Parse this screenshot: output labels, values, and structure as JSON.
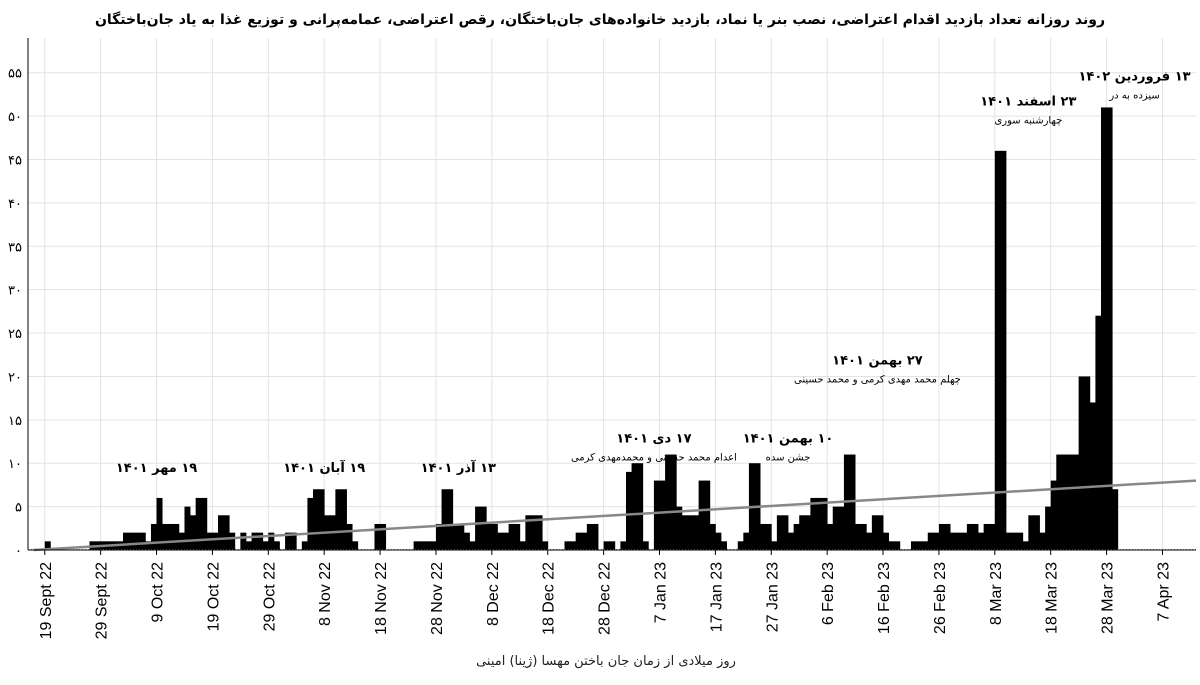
{
  "chart_data": {
    "type": "bar",
    "title": "روند روزانه تعداد بازدید اقدام اعتراضی، نصب بنر یا نماد، بازدید خانواده‌های جان‌باختگان، رقص اعتراضی، عمامه‌پرانی و توزیع غذا به یاد جان‌باختگان",
    "xlabel": "روز میلادی از زمان جان باختن مهسا (ژینا) امینی",
    "ylabel": "",
    "x_range": [
      "2022-09-16",
      "2023-04-13"
    ],
    "ylim": [
      0,
      59
    ],
    "grid": true,
    "y_ticks": [
      {
        "value": 0,
        "label": "۰"
      },
      {
        "value": 5,
        "label": "۵"
      },
      {
        "value": 10,
        "label": "۱۰"
      },
      {
        "value": 15,
        "label": "۱۵"
      },
      {
        "value": 20,
        "label": "۲۰"
      },
      {
        "value": 25,
        "label": "۲۵"
      },
      {
        "value": 30,
        "label": "۳۰"
      },
      {
        "value": 35,
        "label": "۳۵"
      },
      {
        "value": 40,
        "label": "۴۰"
      },
      {
        "value": 45,
        "label": "۴۵"
      },
      {
        "value": 50,
        "label": "۵۰"
      },
      {
        "value": 55,
        "label": "۵۵"
      }
    ],
    "x_ticks": [
      {
        "date": "2022-09-19",
        "label": "19 Sept 22"
      },
      {
        "date": "2022-09-29",
        "label": "29 Sept 22"
      },
      {
        "date": "2022-10-09",
        "label": "9 Oct 22"
      },
      {
        "date": "2022-10-19",
        "label": "19 Oct 22"
      },
      {
        "date": "2022-10-29",
        "label": "29 Oct 22"
      },
      {
        "date": "2022-11-08",
        "label": "8 Nov 22"
      },
      {
        "date": "2022-11-18",
        "label": "18 Nov 22"
      },
      {
        "date": "2022-11-28",
        "label": "28 Nov 22"
      },
      {
        "date": "2022-12-08",
        "label": "8 Dec 22"
      },
      {
        "date": "2022-12-18",
        "label": "18 Dec 22"
      },
      {
        "date": "2022-12-28",
        "label": "28 Dec 22"
      },
      {
        "date": "2023-01-07",
        "label": "7 Jan 23"
      },
      {
        "date": "2023-01-17",
        "label": "17 Jan 23"
      },
      {
        "date": "2023-01-27",
        "label": "27 Jan 23"
      },
      {
        "date": "2023-02-06",
        "label": "6 Feb 23"
      },
      {
        "date": "2023-02-16",
        "label": "16 Feb 23"
      },
      {
        "date": "2023-02-26",
        "label": "26 Feb 23"
      },
      {
        "date": "2023-03-08",
        "label": "8 Mar 23"
      },
      {
        "date": "2023-03-18",
        "label": "18 Mar 23"
      },
      {
        "date": "2023-03-28",
        "label": "28 Mar 23"
      },
      {
        "date": "2023-04-07",
        "label": "7 Apr 23"
      }
    ],
    "series": [
      {
        "values": [
          {
            "date": "2022-09-17",
            "value": 0
          },
          {
            "date": "2022-09-19",
            "value": 1
          },
          {
            "date": "2022-09-27",
            "value": 1
          },
          {
            "date": "2022-09-28",
            "value": 1
          },
          {
            "date": "2022-09-29",
            "value": 1
          },
          {
            "date": "2022-09-30",
            "value": 1
          },
          {
            "date": "2022-10-01",
            "value": 1
          },
          {
            "date": "2022-10-02",
            "value": 1
          },
          {
            "date": "2022-10-03",
            "value": 2
          },
          {
            "date": "2022-10-04",
            "value": 2
          },
          {
            "date": "2022-10-05",
            "value": 2
          },
          {
            "date": "2022-10-06",
            "value": 2
          },
          {
            "date": "2022-10-07",
            "value": 1
          },
          {
            "date": "2022-10-08",
            "value": 3
          },
          {
            "date": "2022-10-09",
            "value": 6
          },
          {
            "date": "2022-10-10",
            "value": 3
          },
          {
            "date": "2022-10-11",
            "value": 3
          },
          {
            "date": "2022-10-12",
            "value": 3
          },
          {
            "date": "2022-10-13",
            "value": 2
          },
          {
            "date": "2022-10-14",
            "value": 5
          },
          {
            "date": "2022-10-15",
            "value": 4
          },
          {
            "date": "2022-10-16",
            "value": 6
          },
          {
            "date": "2022-10-17",
            "value": 6
          },
          {
            "date": "2022-10-18",
            "value": 2
          },
          {
            "date": "2022-10-19",
            "value": 2
          },
          {
            "date": "2022-10-20",
            "value": 4
          },
          {
            "date": "2022-10-21",
            "value": 4
          },
          {
            "date": "2022-10-22",
            "value": 2
          },
          {
            "date": "2022-10-24",
            "value": 2
          },
          {
            "date": "2022-10-25",
            "value": 1
          },
          {
            "date": "2022-10-26",
            "value": 2
          },
          {
            "date": "2022-10-27",
            "value": 2
          },
          {
            "date": "2022-10-28",
            "value": 1
          },
          {
            "date": "2022-10-29",
            "value": 2
          },
          {
            "date": "2022-10-30",
            "value": 1
          },
          {
            "date": "2022-11-01",
            "value": 2
          },
          {
            "date": "2022-11-02",
            "value": 2
          },
          {
            "date": "2022-11-04",
            "value": 1
          },
          {
            "date": "2022-11-05",
            "value": 6
          },
          {
            "date": "2022-11-06",
            "value": 7
          },
          {
            "date": "2022-11-07",
            "value": 7
          },
          {
            "date": "2022-11-08",
            "value": 4
          },
          {
            "date": "2022-11-09",
            "value": 4
          },
          {
            "date": "2022-11-10",
            "value": 7
          },
          {
            "date": "2022-11-11",
            "value": 7
          },
          {
            "date": "2022-11-12",
            "value": 3
          },
          {
            "date": "2022-11-13",
            "value": 1
          },
          {
            "date": "2022-11-17",
            "value": 3
          },
          {
            "date": "2022-11-18",
            "value": 3
          },
          {
            "date": "2022-11-24",
            "value": 1
          },
          {
            "date": "2022-11-25",
            "value": 1
          },
          {
            "date": "2022-11-26",
            "value": 1
          },
          {
            "date": "2022-11-27",
            "value": 1
          },
          {
            "date": "2022-11-28",
            "value": 3
          },
          {
            "date": "2022-11-29",
            "value": 7
          },
          {
            "date": "2022-11-30",
            "value": 7
          },
          {
            "date": "2022-12-01",
            "value": 3
          },
          {
            "date": "2022-12-02",
            "value": 3
          },
          {
            "date": "2022-12-03",
            "value": 2
          },
          {
            "date": "2022-12-04",
            "value": 1
          },
          {
            "date": "2022-12-05",
            "value": 5
          },
          {
            "date": "2022-12-06",
            "value": 5
          },
          {
            "date": "2022-12-07",
            "value": 3
          },
          {
            "date": "2022-12-08",
            "value": 3
          },
          {
            "date": "2022-12-09",
            "value": 2
          },
          {
            "date": "2022-12-10",
            "value": 2
          },
          {
            "date": "2022-12-11",
            "value": 3
          },
          {
            "date": "2022-12-12",
            "value": 3
          },
          {
            "date": "2022-12-13",
            "value": 1
          },
          {
            "date": "2022-12-14",
            "value": 4
          },
          {
            "date": "2022-12-15",
            "value": 4
          },
          {
            "date": "2022-12-16",
            "value": 4
          },
          {
            "date": "2022-12-17",
            "value": 1
          },
          {
            "date": "2022-12-21",
            "value": 1
          },
          {
            "date": "2022-12-22",
            "value": 1
          },
          {
            "date": "2022-12-23",
            "value": 2
          },
          {
            "date": "2022-12-24",
            "value": 2
          },
          {
            "date": "2022-12-25",
            "value": 3
          },
          {
            "date": "2022-12-26",
            "value": 3
          },
          {
            "date": "2022-12-28",
            "value": 1
          },
          {
            "date": "2022-12-29",
            "value": 1
          },
          {
            "date": "2022-12-31",
            "value": 1
          },
          {
            "date": "2023-01-01",
            "value": 9
          },
          {
            "date": "2023-01-02",
            "value": 10
          },
          {
            "date": "2023-01-03",
            "value": 10
          },
          {
            "date": "2023-01-04",
            "value": 1
          },
          {
            "date": "2023-01-06",
            "value": 8
          },
          {
            "date": "2023-01-07",
            "value": 8
          },
          {
            "date": "2023-01-08",
            "value": 11
          },
          {
            "date": "2023-01-09",
            "value": 11
          },
          {
            "date": "2023-01-10",
            "value": 5
          },
          {
            "date": "2023-01-11",
            "value": 4
          },
          {
            "date": "2023-01-12",
            "value": 4
          },
          {
            "date": "2023-01-13",
            "value": 4
          },
          {
            "date": "2023-01-14",
            "value": 8
          },
          {
            "date": "2023-01-15",
            "value": 8
          },
          {
            "date": "2023-01-16",
            "value": 3
          },
          {
            "date": "2023-01-17",
            "value": 2
          },
          {
            "date": "2023-01-18",
            "value": 1
          },
          {
            "date": "2023-01-21",
            "value": 1
          },
          {
            "date": "2023-01-22",
            "value": 2
          },
          {
            "date": "2023-01-23",
            "value": 10
          },
          {
            "date": "2023-01-24",
            "value": 10
          },
          {
            "date": "2023-01-25",
            "value": 3
          },
          {
            "date": "2023-01-26",
            "value": 3
          },
          {
            "date": "2023-01-27",
            "value": 1
          },
          {
            "date": "2023-01-28",
            "value": 4
          },
          {
            "date": "2023-01-29",
            "value": 4
          },
          {
            "date": "2023-01-30",
            "value": 2
          },
          {
            "date": "2023-01-31",
            "value": 3
          },
          {
            "date": "2023-02-01",
            "value": 4
          },
          {
            "date": "2023-02-02",
            "value": 4
          },
          {
            "date": "2023-02-03",
            "value": 6
          },
          {
            "date": "2023-02-04",
            "value": 6
          },
          {
            "date": "2023-02-05",
            "value": 6
          },
          {
            "date": "2023-02-06",
            "value": 3
          },
          {
            "date": "2023-02-07",
            "value": 5
          },
          {
            "date": "2023-02-08",
            "value": 5
          },
          {
            "date": "2023-02-09",
            "value": 11
          },
          {
            "date": "2023-02-10",
            "value": 11
          },
          {
            "date": "2023-02-11",
            "value": 3
          },
          {
            "date": "2023-02-12",
            "value": 3
          },
          {
            "date": "2023-02-13",
            "value": 2
          },
          {
            "date": "2023-02-14",
            "value": 4
          },
          {
            "date": "2023-02-15",
            "value": 4
          },
          {
            "date": "2023-02-16",
            "value": 2
          },
          {
            "date": "2023-02-17",
            "value": 1
          },
          {
            "date": "2023-02-18",
            "value": 1
          },
          {
            "date": "2023-02-21",
            "value": 1
          },
          {
            "date": "2023-02-22",
            "value": 1
          },
          {
            "date": "2023-02-23",
            "value": 1
          },
          {
            "date": "2023-02-24",
            "value": 2
          },
          {
            "date": "2023-02-25",
            "value": 2
          },
          {
            "date": "2023-02-26",
            "value": 3
          },
          {
            "date": "2023-02-27",
            "value": 3
          },
          {
            "date": "2023-02-28",
            "value": 2
          },
          {
            "date": "2023-03-01",
            "value": 2
          },
          {
            "date": "2023-03-02",
            "value": 2
          },
          {
            "date": "2023-03-03",
            "value": 3
          },
          {
            "date": "2023-03-04",
            "value": 3
          },
          {
            "date": "2023-03-05",
            "value": 2
          },
          {
            "date": "2023-03-06",
            "value": 3
          },
          {
            "date": "2023-03-07",
            "value": 3
          },
          {
            "date": "2023-03-08",
            "value": 46
          },
          {
            "date": "2023-03-09",
            "value": 46
          },
          {
            "date": "2023-03-10",
            "value": 2
          },
          {
            "date": "2023-03-11",
            "value": 2
          },
          {
            "date": "2023-03-12",
            "value": 2
          },
          {
            "date": "2023-03-13",
            "value": 1
          },
          {
            "date": "2023-03-14",
            "value": 4
          },
          {
            "date": "2023-03-15",
            "value": 4
          },
          {
            "date": "2023-03-16",
            "value": 2
          },
          {
            "date": "2023-03-17",
            "value": 5
          },
          {
            "date": "2023-03-18",
            "value": 8
          },
          {
            "date": "2023-03-19",
            "value": 11
          },
          {
            "date": "2023-03-20",
            "value": 11
          },
          {
            "date": "2023-03-21",
            "value": 11
          },
          {
            "date": "2023-03-22",
            "value": 11
          },
          {
            "date": "2023-03-23",
            "value": 20
          },
          {
            "date": "2023-03-24",
            "value": 20
          },
          {
            "date": "2023-03-25",
            "value": 17
          },
          {
            "date": "2023-03-26",
            "value": 27
          },
          {
            "date": "2023-03-27",
            "value": 51
          },
          {
            "date": "2023-03-28",
            "value": 51
          },
          {
            "date": "2023-03-29",
            "value": 7
          }
        ]
      }
    ],
    "trend_line": {
      "start": {
        "date": "2022-09-17",
        "value": 0
      },
      "end": {
        "date": "2023-04-13",
        "value": 8
      }
    },
    "annotations": [
      {
        "date": "2022-10-09",
        "value": 9,
        "main": "۱۹ مهر ۱۴۰۱",
        "sub": ""
      },
      {
        "date": "2022-11-08",
        "value": 9,
        "main": "۱۹ آبان ۱۴۰۱",
        "sub": ""
      },
      {
        "date": "2022-12-02",
        "value": 9,
        "main": "۱۳ آذر ۱۴۰۱",
        "sub": ""
      },
      {
        "date": "2023-01-06",
        "value": 12.4,
        "main": "۱۷ دی ۱۴۰۱",
        "sub": "اعدام محمد حسینی و محمدمهدی کرمی"
      },
      {
        "date": "2023-01-30",
        "value": 12.4,
        "main": "۱۰ بهمن ۱۴۰۱",
        "sub": "جشن سده"
      },
      {
        "date": "2023-02-15",
        "value": 21.4,
        "main": "۲۷ بهمن ۱۴۰۱",
        "sub": "چهلم محمد مهدی کرمی و محمد حسینی"
      },
      {
        "date": "2023-03-14",
        "value": 51.2,
        "main": "۲۳ اسفند ۱۴۰۱",
        "sub": "چهارشنبه سوری"
      },
      {
        "date": "2023-04-02",
        "value": 54.1,
        "main": "۱۳ فروردین ۱۴۰۲",
        "sub": "سیزده به در"
      }
    ]
  }
}
